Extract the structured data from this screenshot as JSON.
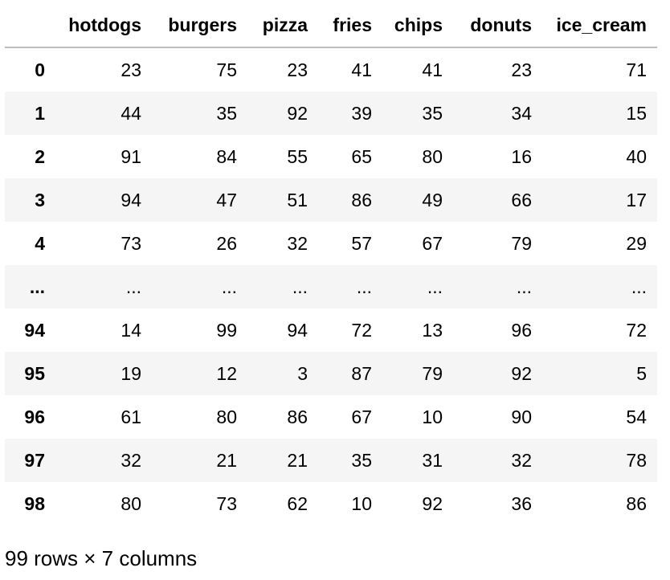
{
  "table": {
    "index_header": "",
    "columns": [
      "hotdogs",
      "burgers",
      "pizza",
      "fries",
      "chips",
      "donuts",
      "ice_cream"
    ],
    "rows": [
      {
        "index": "0",
        "values": [
          "23",
          "75",
          "23",
          "41",
          "41",
          "23",
          "71"
        ]
      },
      {
        "index": "1",
        "values": [
          "44",
          "35",
          "92",
          "39",
          "35",
          "34",
          "15"
        ]
      },
      {
        "index": "2",
        "values": [
          "91",
          "84",
          "55",
          "65",
          "80",
          "16",
          "40"
        ]
      },
      {
        "index": "3",
        "values": [
          "94",
          "47",
          "51",
          "86",
          "49",
          "66",
          "17"
        ]
      },
      {
        "index": "4",
        "values": [
          "73",
          "26",
          "32",
          "57",
          "67",
          "79",
          "29"
        ]
      },
      {
        "index": "...",
        "values": [
          "...",
          "...",
          "...",
          "...",
          "...",
          "...",
          "..."
        ]
      },
      {
        "index": "94",
        "values": [
          "14",
          "99",
          "94",
          "72",
          "13",
          "96",
          "72"
        ]
      },
      {
        "index": "95",
        "values": [
          "19",
          "12",
          "3",
          "87",
          "79",
          "92",
          "5"
        ]
      },
      {
        "index": "96",
        "values": [
          "61",
          "80",
          "86",
          "67",
          "10",
          "90",
          "54"
        ]
      },
      {
        "index": "97",
        "values": [
          "32",
          "21",
          "21",
          "35",
          "31",
          "32",
          "78"
        ]
      },
      {
        "index": "98",
        "values": [
          "80",
          "73",
          "62",
          "10",
          "92",
          "36",
          "86"
        ]
      }
    ]
  },
  "shape_note": "99 rows × 7 columns"
}
